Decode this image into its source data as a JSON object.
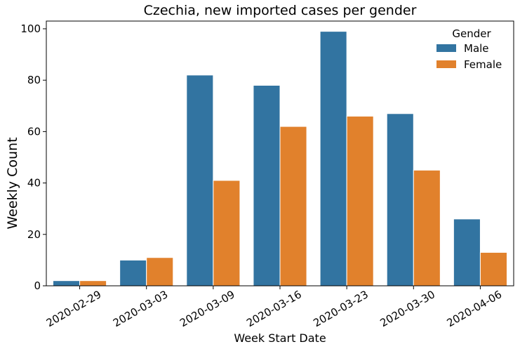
{
  "chart_data": {
    "type": "bar",
    "title": "Czechia, new imported cases per gender",
    "xlabel": "Week Start Date",
    "ylabel": "Weekly Count",
    "categories": [
      "2020-02-29",
      "2020-03-03",
      "2020-03-09",
      "2020-03-16",
      "2020-03-23",
      "2020-03-30",
      "2020-04-06"
    ],
    "series": [
      {
        "name": "Male",
        "color": "#3274a1",
        "values": [
          2,
          10,
          82,
          78,
          99,
          67,
          26
        ]
      },
      {
        "name": "Female",
        "color": "#e1812c",
        "values": [
          2,
          11,
          41,
          62,
          66,
          45,
          13
        ]
      }
    ],
    "ylim": [
      0,
      103
    ],
    "yticks": [
      0,
      20,
      40,
      60,
      80,
      100
    ],
    "legend": {
      "title": "Gender",
      "placement": "top-right"
    },
    "grid": false
  }
}
